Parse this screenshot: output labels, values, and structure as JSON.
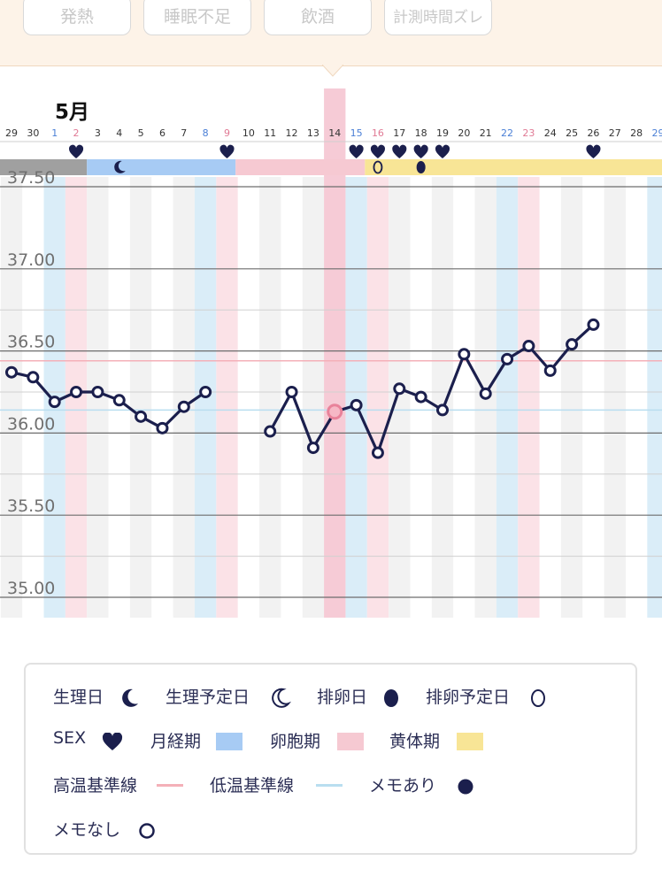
{
  "header_tags": [
    {
      "label": "発熱"
    },
    {
      "label": "睡眠不足"
    },
    {
      "label": "飲酒"
    },
    {
      "label": "計測時間ズレ"
    }
  ],
  "chart_data": {
    "type": "line",
    "month_label": "5月",
    "x_days": [
      "29",
      "30",
      "1",
      "2",
      "3",
      "4",
      "5",
      "6",
      "7",
      "8",
      "9",
      "10",
      "11",
      "12",
      "13",
      "14",
      "15",
      "16",
      "17",
      "18",
      "19",
      "20",
      "21",
      "22",
      "23",
      "24",
      "25",
      "26",
      "27",
      "28",
      "29"
    ],
    "day_label_colors": [
      "#333333",
      "#333333",
      "#4a7fd6",
      "#e07a95",
      "#333333",
      "#333333",
      "#333333",
      "#333333",
      "#333333",
      "#4a7fd6",
      "#e07a95",
      "#333333",
      "#333333",
      "#333333",
      "#333333",
      "#333333",
      "#4a7fd6",
      "#e07a95",
      "#333333",
      "#333333",
      "#333333",
      "#333333",
      "#333333",
      "#4a7fd6",
      "#e07a95",
      "#333333",
      "#333333",
      "#333333",
      "#333333",
      "#333333",
      "#4a7fd6"
    ],
    "y_ticks": [
      "37.50",
      "37.00",
      "36.50",
      "36.00",
      "35.50",
      "35.00"
    ],
    "ylim": [
      34.95,
      37.55
    ],
    "selected_day_index": 15,
    "high_baseline": 36.44,
    "low_baseline": 36.14,
    "temperatures": [
      36.37,
      36.34,
      36.19,
      36.25,
      36.25,
      36.2,
      36.1,
      36.03,
      36.16,
      36.25,
      null,
      null,
      36.01,
      36.25,
      35.91,
      36.13,
      36.17,
      35.88,
      36.27,
      36.22,
      36.14,
      36.48,
      36.24,
      36.45,
      36.53,
      36.38,
      36.54,
      36.66,
      null,
      null,
      null
    ],
    "sex_days": [
      3,
      10,
      16,
      17,
      18,
      19,
      20,
      27
    ],
    "phase_bar": [
      {
        "phase": "period_actual",
        "start": 0,
        "end": 4.0
      },
      {
        "phase": "period",
        "start": 4.0,
        "end": 10.9
      },
      {
        "phase": "follicular",
        "start": 10.9,
        "end": 16.9
      },
      {
        "phase": "luteal",
        "start": 16.9,
        "end": 31.0
      }
    ],
    "period_icon_day": 5,
    "ovulation_predicted_day": 17,
    "ovulation_day": 19,
    "colors": {
      "line": "#1b1f4d",
      "selected": "#e8829a",
      "high_baseline": "#f4b0b8",
      "low_baseline": "#b9def0",
      "period_actual": "#a0a0a0",
      "period": "#a7cbf4",
      "follicular": "#f6c9d2",
      "luteal": "#f8e596",
      "weekend_blue": "#daedf8",
      "weekend_pink": "#fbe2e7",
      "alt_col": "#f2f2f2"
    }
  },
  "legend": {
    "period_day": "生理日",
    "period_predicted": "生理予定日",
    "ovulation_day": "排卵日",
    "ovulation_predicted": "排卵予定日",
    "sex": "SEX",
    "menstrual_phase": "月経期",
    "follicular_phase": "卵胞期",
    "luteal_phase": "黄体期",
    "high_baseline": "高温基準線",
    "low_baseline": "低温基準線",
    "memo_yes": "メモあり",
    "memo_no": "メモなし"
  }
}
